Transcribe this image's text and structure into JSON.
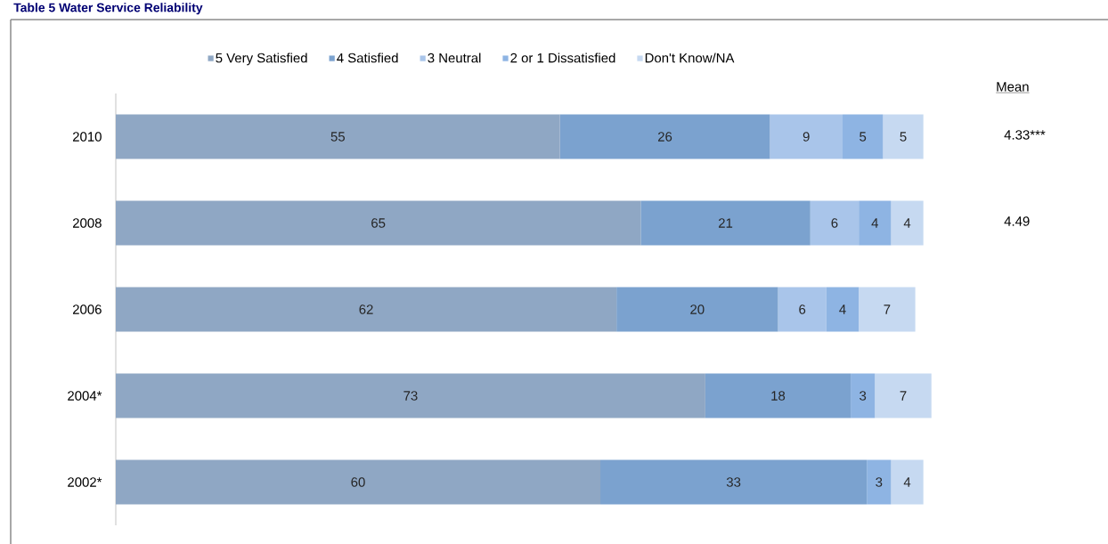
{
  "chart_data": {
    "type": "bar",
    "orientation": "horizontal",
    "stacked": true,
    "title": "Table 5 Water Service Reliability",
    "categories": [
      "2010",
      "2008",
      "2006",
      "2004*",
      "2002*"
    ],
    "series": [
      {
        "name": "5 Very Satisfied",
        "color": "#8fa7c4",
        "values": [
          55,
          65,
          62,
          73,
          60
        ]
      },
      {
        "name": "4 Satisfied",
        "color": "#7ba2cf",
        "values": [
          26,
          21,
          20,
          18,
          33
        ]
      },
      {
        "name": "3 Neutral",
        "color": "#a9c5ea",
        "values": [
          9,
          6,
          6,
          null,
          null
        ]
      },
      {
        "name": "2 or 1 Dissatisfied",
        "color": "#8eb4e3",
        "values": [
          5,
          4,
          4,
          3,
          3
        ]
      },
      {
        "name": "Don't Know/NA",
        "color": "#c6d9f1",
        "values": [
          5,
          4,
          7,
          7,
          4
        ]
      }
    ],
    "data_labels": true,
    "legend": "top",
    "tick_labels": "y",
    "annotations": [
      "Mean",
      "4.33***",
      "4.49"
    ]
  }
}
